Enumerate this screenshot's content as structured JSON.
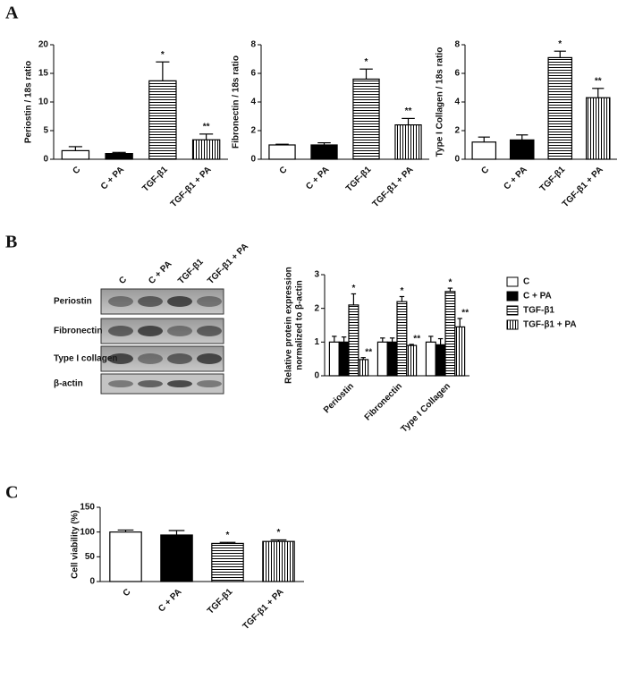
{
  "panels": [
    {
      "label": "A"
    },
    {
      "label": "B"
    },
    {
      "label": "C"
    }
  ],
  "blot": {
    "columns": [
      "C",
      "C + PA",
      "TGF-β1",
      "TGF-β1 + PA"
    ],
    "rows": [
      "Periostin",
      "Fibronectin",
      "Type I collagen",
      "β-actin"
    ]
  },
  "chart_data": [
    {
      "type": "bar",
      "y_label": [
        "Periostin / 18s ratio"
      ],
      "categories": [
        "C",
        "C + PA",
        "TGF-β1",
        "TGF-β1 + PA"
      ],
      "values": [
        1.5,
        1.0,
        13.7,
        3.4
      ],
      "errors": [
        0.7,
        0.2,
        3.3,
        1.0
      ],
      "bar_fills": [
        "white",
        "black",
        "hstripe",
        "vstripe"
      ],
      "ylim": [
        0,
        20
      ],
      "yticks": [
        0,
        5,
        10,
        15,
        20
      ],
      "annotations": [
        {
          "category": "TGF-β1",
          "text": "*"
        },
        {
          "category": "TGF-β1 + PA",
          "text": "**"
        }
      ]
    },
    {
      "type": "bar",
      "y_label": [
        "Fibronectin / 18s ratio"
      ],
      "categories": [
        "C",
        "C + PA",
        "TGF-β1",
        "TGF-β1 + PA"
      ],
      "values": [
        1.0,
        1.0,
        5.6,
        2.4
      ],
      "errors": [
        0.05,
        0.15,
        0.7,
        0.45
      ],
      "bar_fills": [
        "white",
        "black",
        "hstripe",
        "vstripe"
      ],
      "ylim": [
        0,
        8
      ],
      "yticks": [
        0,
        2,
        4,
        6,
        8
      ],
      "annotations": [
        {
          "category": "TGF-β1",
          "text": "*"
        },
        {
          "category": "TGF-β1 + PA",
          "text": "**"
        }
      ]
    },
    {
      "type": "bar",
      "y_label": [
        "Type I Collagen / 18s ratio"
      ],
      "categories": [
        "C",
        "C + PA",
        "TGF-β1",
        "TGF-β1 + PA"
      ],
      "values": [
        1.2,
        1.35,
        7.1,
        4.3
      ],
      "errors": [
        0.35,
        0.35,
        0.45,
        0.65
      ],
      "bar_fills": [
        "white",
        "black",
        "hstripe",
        "vstripe"
      ],
      "ylim": [
        0,
        8
      ],
      "yticks": [
        0,
        2,
        4,
        6,
        8
      ],
      "annotations": [
        {
          "category": "TGF-β1",
          "text": "*"
        },
        {
          "category": "TGF-β1 + PA",
          "text": "**"
        }
      ]
    },
    {
      "type": "grouped_bar",
      "y_label": [
        "Relative protein expression",
        "normalized to β-actin"
      ],
      "categories": [
        "Periostin",
        "Fibronectin",
        "Type I Collagen"
      ],
      "series": [
        {
          "name": "C",
          "fill": "white",
          "values": [
            1.0,
            1.0,
            1.0
          ],
          "errors": [
            0.17,
            0.12,
            0.17
          ]
        },
        {
          "name": "C + PA",
          "fill": "black",
          "values": [
            1.0,
            1.0,
            0.92
          ],
          "errors": [
            0.15,
            0.12,
            0.18
          ]
        },
        {
          "name": "TGF-β1",
          "fill": "hstripe",
          "values": [
            2.1,
            2.2,
            2.5
          ],
          "errors": [
            0.33,
            0.15,
            0.1
          ]
        },
        {
          "name": "TGF-β1 + PA",
          "fill": "vstripe",
          "values": [
            0.48,
            0.9,
            1.45
          ],
          "errors": [
            0.06,
            0.03,
            0.25
          ]
        }
      ],
      "ylim": [
        0,
        3
      ],
      "yticks": [
        0,
        1,
        2,
        3
      ],
      "legend": "right",
      "annotations": [
        {
          "category": "Periostin",
          "series": "TGF-β1",
          "text": "*"
        },
        {
          "category": "Periostin",
          "series": "TGF-β1 + PA",
          "text": "**"
        },
        {
          "category": "Fibronectin",
          "series": "TGF-β1",
          "text": "*"
        },
        {
          "category": "Fibronectin",
          "series": "TGF-β1 + PA",
          "text": "**"
        },
        {
          "category": "Type I Collagen",
          "series": "TGF-β1",
          "text": "*"
        },
        {
          "category": "Type I Collagen",
          "series": "TGF-β1 + PA",
          "text": "**"
        }
      ]
    },
    {
      "type": "bar",
      "y_label": [
        "Cell viability (%)"
      ],
      "categories": [
        "C",
        "C + PA",
        "TGF-β1",
        "TGF-β1 + PA"
      ],
      "values": [
        100,
        94,
        77,
        81
      ],
      "errors": [
        4,
        9,
        2,
        3
      ],
      "bar_fills": [
        "white",
        "black",
        "hstripe",
        "vstripe"
      ],
      "ylim": [
        0,
        150
      ],
      "yticks": [
        0,
        50,
        100,
        150
      ],
      "annotations": [
        {
          "category": "TGF-β1",
          "text": "*"
        },
        {
          "category": "TGF-β1 + PA",
          "text": "*"
        }
      ]
    }
  ]
}
